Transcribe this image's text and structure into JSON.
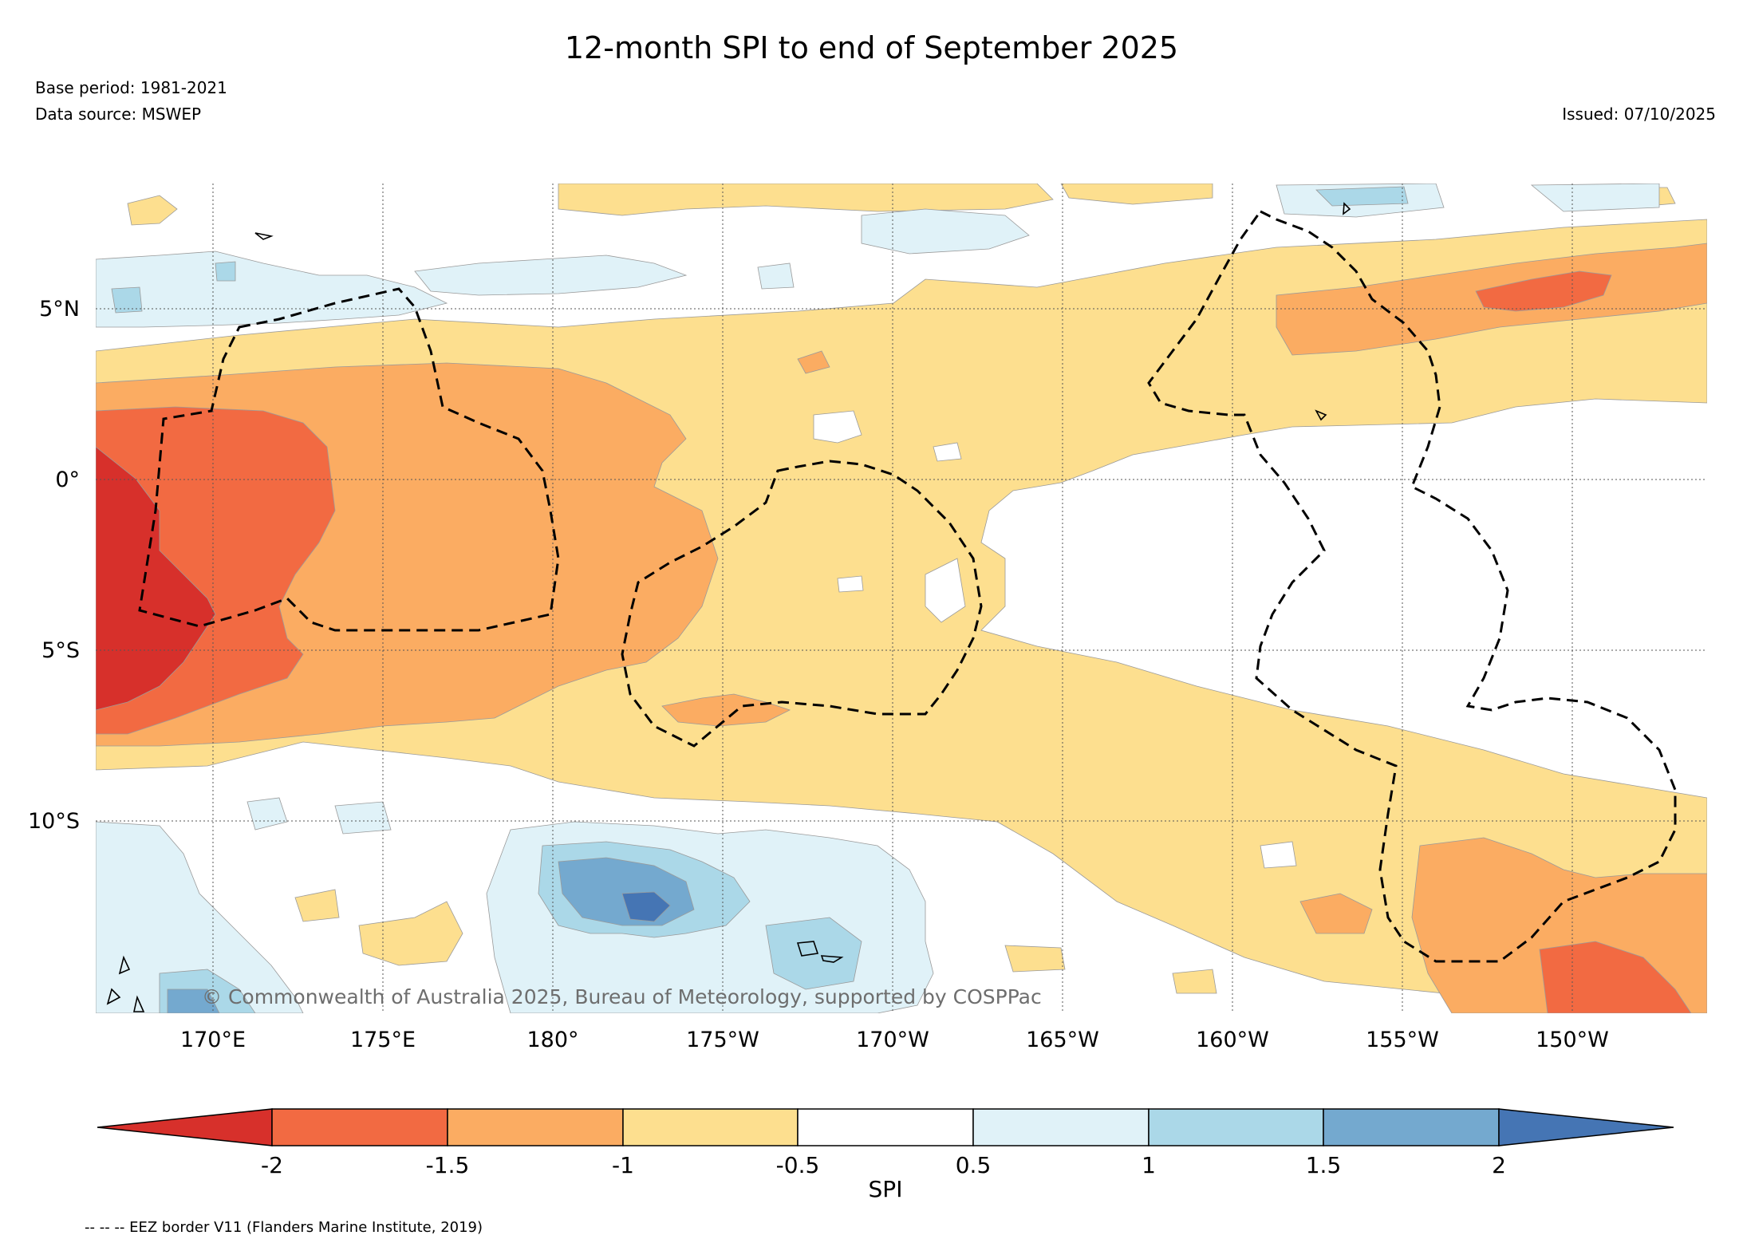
{
  "title": "12-month SPI to end of September 2025",
  "base_period": "Base period: 1981-2021",
  "data_source": "Data source: MSWEP",
  "issued": "Issued: 07/10/2025",
  "credit": "© Commonwealth of Australia 2025, Bureau of Meteorology, supported by COSPPac",
  "footer_note": "-- -- -- EEZ border V11 (Flanders Marine Institute, 2019)",
  "map": {
    "lon_labels": [
      "170°E",
      "175°E",
      "180°",
      "175°W",
      "170°W",
      "165°W",
      "160°W",
      "155°W",
      "150°W"
    ],
    "lat_labels": [
      "5°N",
      "0°",
      "5°S",
      "10°S"
    ]
  },
  "colorbar": {
    "label": "SPI",
    "ticks": [
      "-2",
      "-1.5",
      "-1",
      "-0.5",
      "0.5",
      "1",
      "1.5",
      "2"
    ],
    "colors": {
      "below_-2": "#d7302b",
      "-2_-1.5": "#f26a42",
      "-1.5_-1": "#fbac62",
      "-1_-0.5": "#fddf8f",
      "-0.5_0.5": "#ffffff",
      "0.5_1": "#e0f2f8",
      "1_1.5": "#abd8e8",
      "1.5_2": "#74a9cf",
      "above_2": "#4575b4"
    }
  }
}
